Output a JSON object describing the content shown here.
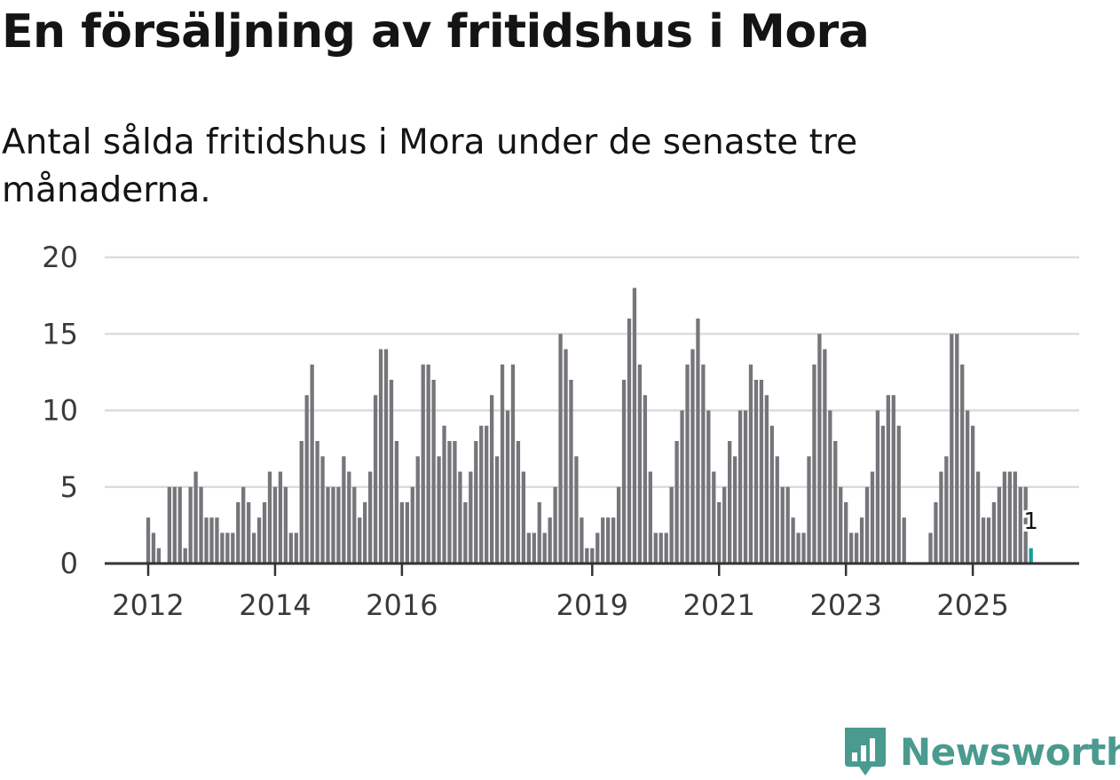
{
  "title": "En försäljning av fritidshus i Mora",
  "subtitle": "Antal sålda fritidshus i Mora under de senaste tre månaderna.",
  "brand": {
    "name": "Newsworthy",
    "color": "#4a9a90"
  },
  "colors": {
    "bar": "#76757a",
    "highlight": "#1a9c94",
    "grid": "#dcdcdc",
    "axis": "#333333"
  },
  "chart_data": {
    "type": "bar",
    "title": "En försäljning av fritidshus i Mora",
    "xlabel": "",
    "ylabel": "",
    "ylim": [
      0,
      20
    ],
    "yticks": [
      "0",
      "5",
      "10",
      "15",
      "20"
    ],
    "xticks": [
      {
        "label": "2012",
        "index": 0
      },
      {
        "label": "2014",
        "index": 24
      },
      {
        "label": "2016",
        "index": 48
      },
      {
        "label": "2019",
        "index": 84
      },
      {
        "label": "2021",
        "index": 108
      },
      {
        "label": "2023",
        "index": 132
      },
      {
        "label": "2025",
        "index": 156
      }
    ],
    "start": "2012-01",
    "frequency": "monthly",
    "values": [
      3,
      2,
      1,
      0,
      5,
      5,
      5,
      1,
      5,
      6,
      5,
      3,
      3,
      3,
      2,
      2,
      2,
      4,
      5,
      4,
      2,
      3,
      4,
      6,
      5,
      6,
      5,
      2,
      2,
      8,
      11,
      13,
      8,
      7,
      5,
      5,
      5,
      7,
      6,
      5,
      3,
      4,
      6,
      11,
      14,
      14,
      12,
      8,
      4,
      4,
      5,
      7,
      13,
      13,
      12,
      7,
      9,
      8,
      8,
      6,
      4,
      6,
      8,
      9,
      9,
      11,
      7,
      13,
      10,
      13,
      8,
      6,
      2,
      2,
      4,
      2,
      3,
      5,
      15,
      14,
      12,
      7,
      3,
      1,
      1,
      2,
      3,
      3,
      3,
      5,
      12,
      16,
      18,
      13,
      11,
      6,
      2,
      2,
      2,
      5,
      8,
      10,
      13,
      14,
      16,
      13,
      10,
      6,
      4,
      5,
      8,
      7,
      10,
      10,
      13,
      12,
      12,
      11,
      9,
      7,
      5,
      5,
      3,
      2,
      2,
      7,
      13,
      15,
      14,
      10,
      8,
      5,
      4,
      2,
      2,
      3,
      5,
      6,
      10,
      9,
      11,
      11,
      9,
      3,
      0,
      0,
      0,
      0,
      2,
      4,
      6,
      7,
      15,
      15,
      13,
      10,
      9,
      6,
      3,
      3,
      4,
      5,
      6,
      6,
      6,
      5,
      5,
      1
    ],
    "highlight_index": 167,
    "annotation": {
      "label": "1",
      "value": 1
    }
  }
}
